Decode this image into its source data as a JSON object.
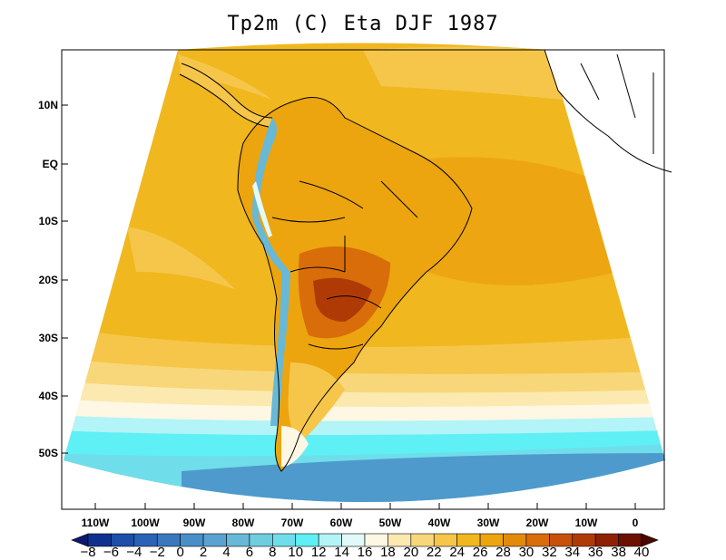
{
  "title": "Tp2m (C) Eta DJF 1987",
  "lat_labels": [
    "10N",
    "EQ",
    "10S",
    "20S",
    "30S",
    "40S",
    "50S"
  ],
  "lon_labels": [
    "110W",
    "100W",
    "90W",
    "80W",
    "70W",
    "60W",
    "50W",
    "40W",
    "30W",
    "20W",
    "10W",
    "0"
  ],
  "colorbar": {
    "labels": [
      "-8",
      "-6",
      "-4",
      "-2",
      "0",
      "2",
      "4",
      "6",
      "8",
      "10",
      "12",
      "14",
      "16",
      "18",
      "20",
      "22",
      "24",
      "26",
      "28",
      "30",
      "32",
      "34",
      "36",
      "38",
      "40"
    ],
    "colors": [
      "#0b1a6e",
      "#10308e",
      "#1d4ea8",
      "#2a63b5",
      "#3a78bd",
      "#4a8ec7",
      "#5aa3d0",
      "#68b8d8",
      "#6fcde0",
      "#6fdeea",
      "#5ef0f5",
      "#b2f4f7",
      "#e2f9fa",
      "#fdf7e3",
      "#fbe9b0",
      "#f8d77a",
      "#f5c64a",
      "#f0b71f",
      "#eca40f",
      "#e38a0c",
      "#d86d09",
      "#c75108",
      "#b03a06",
      "#8e2104",
      "#6c1002",
      "#4a0800"
    ]
  },
  "colors": {
    "ocean_main": "#f0b71f",
    "ocean_warm": "#eca40f",
    "ocean_mid": "#f5c64a",
    "ocean_cool": "#f8d77a",
    "ocean_pale": "#fbe9b0",
    "ocean_cream": "#fdf7e3",
    "ocean_cyan_pale": "#b2f4f7",
    "ocean_cyan": "#5ef0f5",
    "ocean_teal": "#4a8ec7",
    "land_hot": "#d86d09",
    "land_very_hot": "#b03a06",
    "andes": "#68b8d8",
    "andes_snow": "#e2f9fa"
  }
}
